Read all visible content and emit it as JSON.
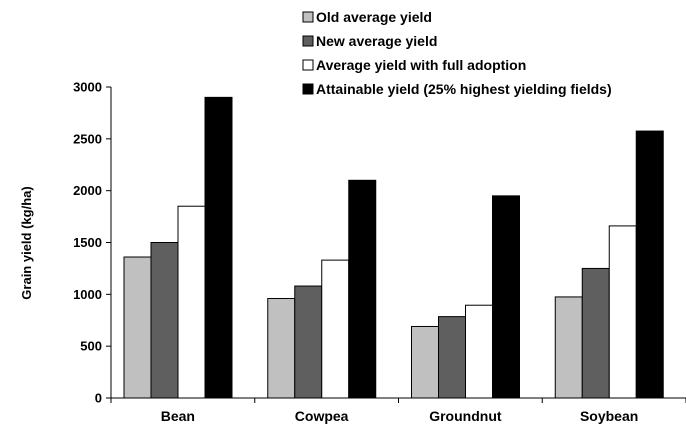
{
  "chart_data": {
    "type": "bar",
    "title": "",
    "xlabel": "",
    "ylabel": "Grain yield (kg/ha)",
    "ylim": [
      0,
      3000
    ],
    "yticks": [
      0,
      500,
      1000,
      1500,
      2000,
      2500,
      3000
    ],
    "categories": [
      "Bean",
      "Cowpea",
      "Groundnut",
      "Soybean"
    ],
    "legend_position": "top-right",
    "grid": false,
    "series": [
      {
        "name": "Old average yield",
        "color": "#c0c0c0",
        "values": [
          1360,
          960,
          690,
          975
        ]
      },
      {
        "name": "New average yield",
        "color": "#5f5f5f",
        "values": [
          1500,
          1080,
          785,
          1250
        ]
      },
      {
        "name": "Average yield with full adoption",
        "color": "#ffffff",
        "values": [
          1850,
          1330,
          895,
          1660
        ]
      },
      {
        "name": "Attainable yield (25% highest yielding fields)",
        "color": "#000000",
        "values": [
          2900,
          2100,
          1950,
          2575
        ]
      }
    ]
  }
}
